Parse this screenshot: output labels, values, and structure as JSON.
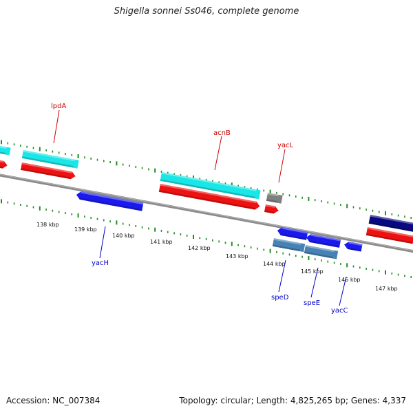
{
  "title": "Shigella sonnei Ss046, complete genome",
  "footer": {
    "accession": "Accession: NC_007384",
    "summary": "Topology: circular; Length: 4,825,265 bp; Genes: 4,337"
  },
  "colors": {
    "backbone": "#8a8a8a",
    "tick": "#1f8c1f",
    "label_forward": "#cc0000",
    "label_reverse": "#0000cc",
    "cyan": "#19e6e6",
    "red": "#ee1111",
    "blue": "#1a1aee",
    "navy": "#0a0a80",
    "steel": "#4682b4",
    "grey": "#808080",
    "tick_label": "#111111"
  },
  "kbp_marks": [
    "138 kbp",
    "139 kbp",
    "140 kbp",
    "141 kbp",
    "142 kbp",
    "143 kbp",
    "144 kbp",
    "145 kbp",
    "146 kbp",
    "147 kbp"
  ],
  "gene_labels": [
    {
      "name": "lpdA",
      "strand": "forward"
    },
    {
      "name": "acnB",
      "strand": "forward"
    },
    {
      "name": "yacL",
      "strand": "forward"
    },
    {
      "name": "yacH",
      "strand": "reverse"
    },
    {
      "name": "speD",
      "strand": "reverse"
    },
    {
      "name": "speE",
      "strand": "reverse"
    },
    {
      "name": "yacC",
      "strand": "reverse"
    }
  ]
}
